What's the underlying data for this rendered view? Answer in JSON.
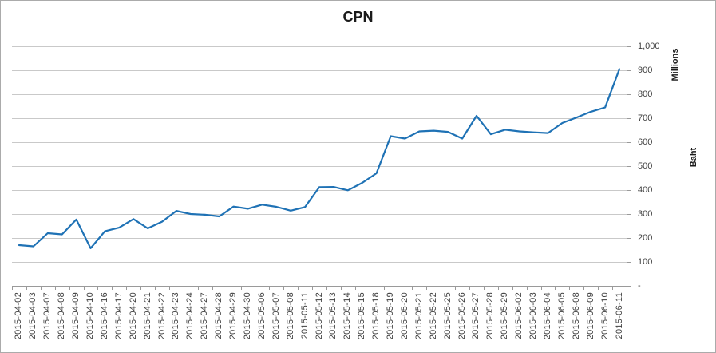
{
  "chart": {
    "title": "CPN",
    "y_axis": {
      "units_label": "Millions",
      "axis_title": "Baht",
      "tick_labels": [
        "1,000",
        "900",
        "800",
        "700",
        "600",
        "500",
        "400",
        "300",
        "200",
        "100",
        "-"
      ]
    }
  },
  "chart_data": {
    "type": "line",
    "title": "CPN",
    "x": [
      "2015-04-02",
      "2015-04-03",
      "2015-04-07",
      "2015-04-08",
      "2015-04-09",
      "2015-04-10",
      "2015-04-16",
      "2015-04-17",
      "2015-04-20",
      "2015-04-21",
      "2015-04-22",
      "2015-04-23",
      "2015-04-24",
      "2015-04-27",
      "2015-04-28",
      "2015-04-29",
      "2015-04-30",
      "2015-05-06",
      "2015-05-07",
      "2015-05-08",
      "2015-05-11",
      "2015-05-12",
      "2015-05-13",
      "2015-05-14",
      "2015-05-15",
      "2015-05-18",
      "2015-05-19",
      "2015-05-20",
      "2015-05-21",
      "2015-05-22",
      "2015-05-25",
      "2015-05-26",
      "2015-05-27",
      "2015-05-28",
      "2015-05-29",
      "2015-06-02",
      "2015-06-03",
      "2015-06-04",
      "2015-06-05",
      "2015-06-08",
      "2015-06-09",
      "2015-06-10",
      "2015-06-11"
    ],
    "series": [
      {
        "name": "CPN",
        "color": "#1f72b5",
        "values": [
          170,
          165,
          220,
          215,
          277,
          157,
          228,
          243,
          279,
          240,
          268,
          313,
          300,
          297,
          290,
          331,
          322,
          339,
          330,
          314,
          329,
          412,
          413,
          399,
          430,
          470,
          625,
          615,
          645,
          648,
          643,
          615,
          710,
          633,
          652,
          645,
          641,
          638,
          680,
          703,
          727,
          745,
          905
        ]
      }
    ],
    "ylabel": "Baht",
    "y_units_label": "Millions",
    "ylim": [
      0,
      1000
    ],
    "y_tick_step": 100,
    "y_zero_label": "-",
    "x_tick_rotation": -90,
    "grid": true,
    "legend": false,
    "gridline_color": "#c9c9c9",
    "axis_color": "#9a9a9a",
    "label_color": "#3f3f3f"
  }
}
